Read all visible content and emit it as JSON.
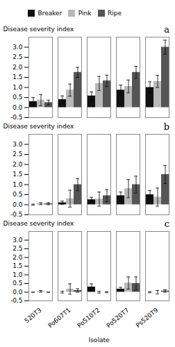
{
  "chart_data": [
    {
      "type": "bar",
      "annotations": [
        "a"
      ],
      "ylabel": "Disease severity index",
      "categories": [
        "520T3",
        "Po607T1",
        "Po510T2",
        "Po520T7",
        "Ps520T9"
      ],
      "series": [
        {
          "name": "Breaker",
          "color": "#111111",
          "values": [
            0.3,
            0.4,
            0.58,
            0.87,
            1.0
          ],
          "errors": [
            0.2,
            0.18,
            0.2,
            0.25,
            0.28
          ]
        },
        {
          "name": "Pink",
          "color": "#b8b8b8",
          "values": [
            0.37,
            0.87,
            1.2,
            1.05,
            1.3
          ],
          "errors": [
            0.28,
            0.3,
            0.35,
            0.32,
            0.3
          ]
        },
        {
          "name": "Ripe",
          "color": "#555555",
          "values": [
            0.25,
            1.75,
            1.33,
            1.75,
            3.0
          ],
          "errors": [
            0.12,
            0.25,
            0.28,
            0.3,
            0.35
          ]
        }
      ],
      "ylim": [
        -0.5,
        3.5
      ],
      "yticks": [
        -0.5,
        {
          "value": 0.0,
          "label": "0.0"
        },
        0.5,
        {
          "value": 1.0,
          "label": "1.0"
        },
        1.5,
        {
          "value": 2.0,
          "label": "2.0"
        },
        2.5,
        {
          "value": 3.0,
          "label": "3.0"
        }
      ],
      "grid": false,
      "legend": "upper left",
      "tick_labels": "y"
    },
    {
      "type": "bar",
      "annotations": [
        "b"
      ],
      "ylabel": "Disease severity index",
      "categories": [
        "520T3",
        "Po607T1",
        "Po510T2",
        "Po520T7",
        "Ps520T9"
      ],
      "series": [
        {
          "name": "Breaker",
          "color": "#111111",
          "values": [
            0.0,
            0.1,
            0.25,
            0.45,
            0.5
          ],
          "errors": [
            0.03,
            0.08,
            0.12,
            0.18,
            0.2
          ]
        },
        {
          "name": "Pink",
          "color": "#b8b8b8",
          "values": [
            0.05,
            0.3,
            0.28,
            0.8,
            0.38
          ],
          "errors": [
            0.05,
            0.42,
            0.35,
            0.45,
            0.45
          ]
        },
        {
          "name": "Ripe",
          "color": "#555555",
          "values": [
            0.05,
            1.0,
            0.45,
            1.0,
            1.5
          ],
          "errors": [
            0.05,
            0.3,
            0.3,
            0.42,
            0.45
          ]
        }
      ],
      "ylim": [
        -0.5,
        3.5
      ],
      "yticks": [
        -0.5,
        {
          "value": 0.0,
          "label": "0.0"
        },
        0.5,
        {
          "value": 1.0,
          "label": "1.0"
        },
        1.5,
        {
          "value": 2.0,
          "label": "2.0"
        },
        2.5,
        {
          "value": 3.0,
          "label": "3.0"
        }
      ],
      "grid": false,
      "tick_labels": "y"
    },
    {
      "type": "bar",
      "annotations": [
        "c"
      ],
      "ylabel": "Disease severity index",
      "xlabel": "Isolate",
      "categories": [
        "520T3",
        "Po607T1",
        "Po510T2",
        "Po520T7",
        "Ps520T9"
      ],
      "series": [
        {
          "name": "Breaker",
          "color": "#111111",
          "values": [
            0.0,
            0.0,
            0.3,
            0.18,
            0.0
          ],
          "errors": [
            0.0,
            0.05,
            0.18,
            0.1,
            0.03
          ]
        },
        {
          "name": "Pink",
          "color": "#b8b8b8",
          "values": [
            0.05,
            0.18,
            0.0,
            0.53,
            0.0
          ],
          "errors": [
            0.05,
            0.3,
            0.05,
            0.35,
            0.1
          ]
        },
        {
          "name": "Ripe",
          "color": "#555555",
          "values": [
            0.0,
            0.1,
            0.0,
            0.5,
            0.07
          ],
          "errors": [
            0.0,
            0.1,
            0.03,
            0.38,
            0.07
          ]
        }
      ],
      "ylim": [
        -0.5,
        3.5
      ],
      "yticks": [
        -0.5,
        {
          "value": 0.0,
          "label": "0.0"
        },
        0.5,
        {
          "value": 1.0,
          "label": "1.0"
        },
        1.5,
        {
          "value": 2.0,
          "label": "2.0"
        },
        2.5,
        {
          "value": 3.0,
          "label": "3.0"
        }
      ],
      "grid": false
    }
  ]
}
